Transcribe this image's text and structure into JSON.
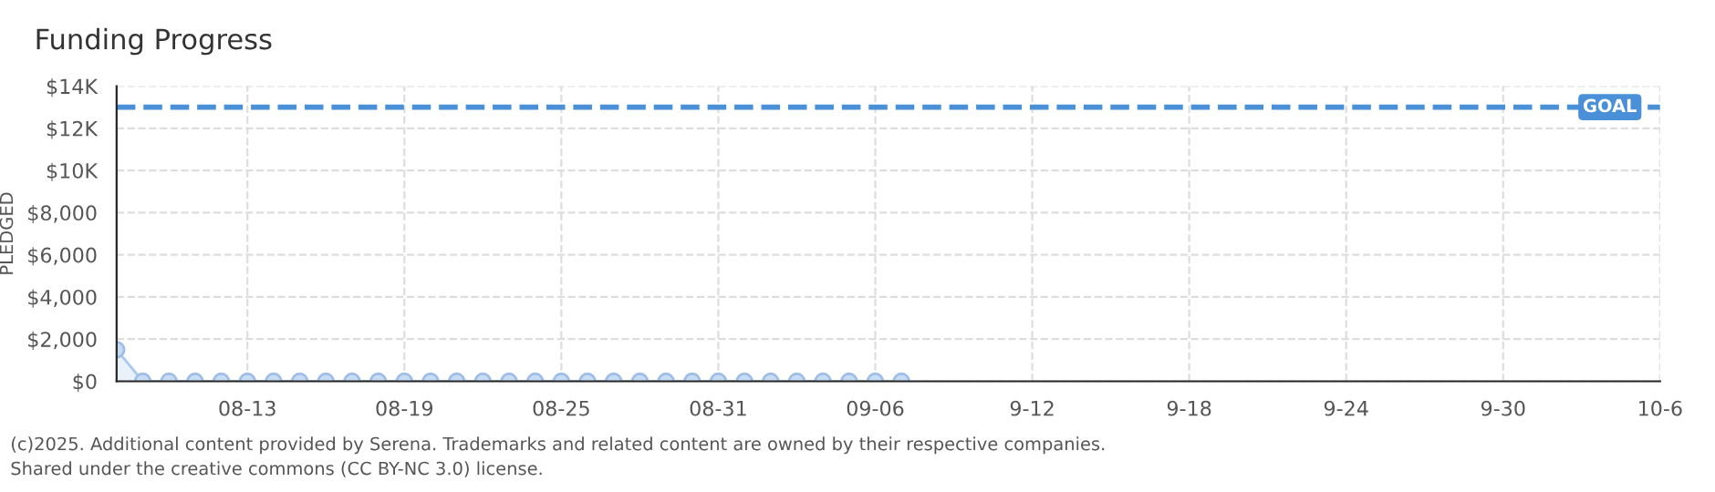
{
  "chart_data": {
    "type": "area",
    "title": "Funding Progress",
    "ylabel": "PLEDGED",
    "x": [
      "2025-08-08",
      "2025-08-09",
      "2025-08-10",
      "2025-08-11",
      "2025-08-12",
      "2025-08-13",
      "2025-08-14",
      "2025-08-15",
      "2025-08-16",
      "2025-08-17",
      "2025-08-18",
      "2025-08-19",
      "2025-08-20",
      "2025-08-21",
      "2025-08-22",
      "2025-08-23",
      "2025-08-24",
      "2025-08-25",
      "2025-08-26",
      "2025-08-27",
      "2025-08-28",
      "2025-08-29",
      "2025-08-30",
      "2025-08-31",
      "2025-09-01",
      "2025-09-02",
      "2025-09-03",
      "2025-09-04",
      "2025-09-05",
      "2025-09-06",
      "2025-09-07"
    ],
    "series": [
      {
        "color": "#a9c8ee",
        "values": [
          1500,
          0,
          0,
          0,
          0,
          0,
          0,
          0,
          0,
          0,
          0,
          0,
          0,
          0,
          0,
          0,
          0,
          0,
          0,
          0,
          0,
          0,
          0,
          0,
          0,
          0,
          0,
          0,
          0,
          0,
          0
        ]
      }
    ],
    "marker": "circle",
    "xlim": [
      "2025-08-08",
      "2025-10-06"
    ],
    "xticks": [
      {
        "value": "2025-08-13",
        "label": "08-13"
      },
      {
        "value": "2025-08-19",
        "label": "08-19"
      },
      {
        "value": "2025-08-25",
        "label": "08-25"
      },
      {
        "value": "2025-08-31",
        "label": "08-31"
      },
      {
        "value": "2025-09-06",
        "label": "09-06"
      },
      {
        "value": "2025-09-12",
        "label": "9-12"
      },
      {
        "value": "2025-09-18",
        "label": "9-18"
      },
      {
        "value": "2025-09-24",
        "label": "9-24"
      },
      {
        "value": "2025-09-30",
        "label": "9-30"
      },
      {
        "value": "2025-10-06",
        "label": "10-6"
      }
    ],
    "ylim": [
      0,
      14000
    ],
    "yticks": [
      {
        "value": 0,
        "label": "$0"
      },
      {
        "value": 2000,
        "label": "$2,000"
      },
      {
        "value": 4000,
        "label": "$4,000"
      },
      {
        "value": 6000,
        "label": "$6,000"
      },
      {
        "value": 8000,
        "label": "$8,000"
      },
      {
        "value": 10000,
        "label": "$10K"
      },
      {
        "value": 12000,
        "label": "$12K"
      },
      {
        "value": 14000,
        "label": "$14K"
      }
    ],
    "ref_lines": [
      {
        "axis": "y",
        "value": 13000,
        "label": "GOAL",
        "color": "#4a90d9",
        "line_style": "dashed"
      }
    ],
    "grid": true,
    "legend": false,
    "annotations": [
      "(c)2025. Additional content provided by Serena. Trademarks and related content are owned by their respective companies.",
      "Shared under the creative commons (CC BY-NC 3.0) license."
    ]
  }
}
